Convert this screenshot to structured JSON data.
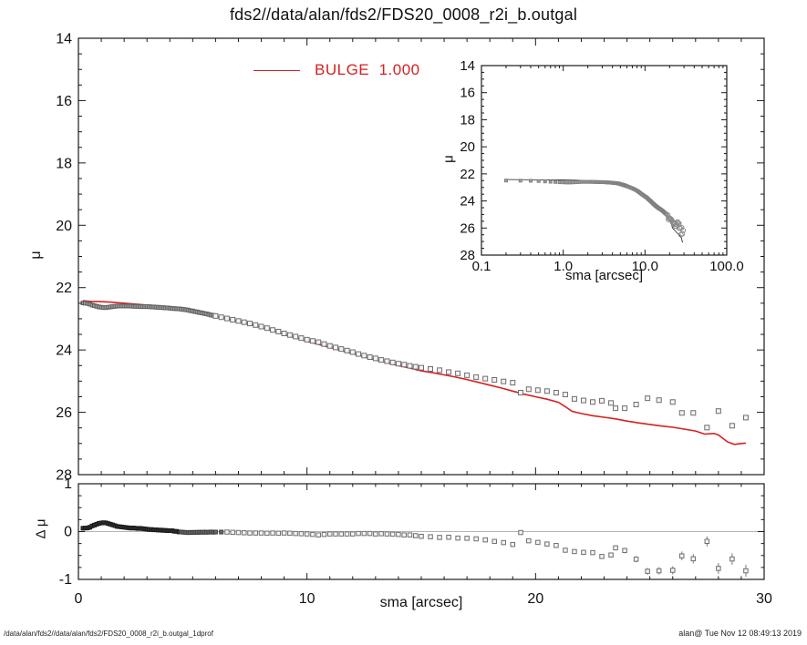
{
  "title": "fds2//data/alan/fds2/FDS20_0008_r2i_b.outgal",
  "legend": {
    "label": "BULGE  1.000",
    "color": "#d62020"
  },
  "footer": {
    "left": "/data/alan/fds2//data/alan/fds2/FDS20_0008_r2i_b.outgal_1dprof",
    "right": "alan@  Tue Nov 12 08:49:13 2019"
  },
  "colors": {
    "model_line": "#d62020",
    "inset_model_line": "#3a3a3a",
    "frame": "#1a1a1a",
    "zero_line": "#b4b4b4",
    "marker_stroke": "#6e6e6e",
    "marker_fill": "#f4f4f4",
    "dense_fill": "#9b9b9b",
    "dense_stroke": "#5f5f5f",
    "resid_dense_fill": "#2e2e2e",
    "resid_dense_stroke": "#1a1a1a"
  },
  "main_plot": {
    "ylabel": "μ",
    "xlim": [
      0,
      30
    ],
    "ylim": [
      28,
      14
    ],
    "xtick_labels": [
      "0",
      "10",
      "20",
      "30"
    ],
    "xtick_values": [
      0,
      10,
      20,
      30
    ],
    "ytick_labels": [
      "14",
      "16",
      "18",
      "20",
      "22",
      "24",
      "26",
      "28"
    ],
    "ytick_values": [
      14,
      16,
      18,
      20,
      22,
      24,
      26,
      28
    ],
    "x_minor_step": 1,
    "y_minor_step": 0.5
  },
  "inset_plot": {
    "xlabel": "sma [arcsec]",
    "ylabel": "μ",
    "xscale": "log",
    "xlim": [
      0.1,
      100
    ],
    "ylim": [
      28,
      14
    ],
    "xtick_labels": [
      "0.1",
      "1.0",
      "10.0",
      "100.0"
    ],
    "xtick_values": [
      0.1,
      1,
      10,
      100
    ],
    "ytick_labels": [
      "14",
      "16",
      "18",
      "20",
      "22",
      "24",
      "26",
      "28"
    ],
    "ytick_values": [
      14,
      16,
      18,
      20,
      22,
      24,
      26,
      28
    ],
    "y_minor_step": 0.5
  },
  "residual_plot": {
    "xlabel": "sma [arcsec]",
    "ylabel": "Δ μ",
    "xlim": [
      0,
      30
    ],
    "ylim": [
      -1,
      1
    ],
    "ytick_labels": [
      "1",
      "0",
      "-1"
    ],
    "ytick_values": [
      1,
      0,
      -1
    ],
    "x_minor_step": 1,
    "y_minor_step": 0.25,
    "derivation": "delta_mu = data_mu - bulge_model_mu (interpolated)"
  },
  "chart_data": [
    {
      "id": "main",
      "type": "scatter",
      "title": "fds2//data/alan/fds2/FDS20_0008_r2i_b.outgal",
      "xlabel": "sma [arcsec]",
      "ylabel": "μ",
      "xlim": [
        0,
        30
      ],
      "ylim": [
        28,
        14
      ],
      "series": [
        {
          "name": "surface-brightness-data",
          "marker": "square",
          "points": [
            [
              0.2,
              22.49
            ],
            [
              0.3,
              22.5
            ],
            [
              0.4,
              22.51
            ],
            [
              0.5,
              22.53
            ],
            [
              0.6,
              22.56
            ],
            [
              0.7,
              22.58
            ],
            [
              0.8,
              22.6
            ],
            [
              0.9,
              22.62
            ],
            [
              1.0,
              22.63
            ],
            [
              1.1,
              22.64
            ],
            [
              1.2,
              22.64
            ],
            [
              1.3,
              22.63
            ],
            [
              1.4,
              22.62
            ],
            [
              1.5,
              22.61
            ],
            [
              1.6,
              22.6
            ],
            [
              1.7,
              22.59
            ],
            [
              1.8,
              22.59
            ],
            [
              1.9,
              22.59
            ],
            [
              2.0,
              22.59
            ],
            [
              2.1,
              22.59
            ],
            [
              2.2,
              22.59
            ],
            [
              2.3,
              22.59
            ],
            [
              2.4,
              22.6
            ],
            [
              2.5,
              22.6
            ],
            [
              2.6,
              22.6
            ],
            [
              2.7,
              22.61
            ],
            [
              2.8,
              22.61
            ],
            [
              2.9,
              22.61
            ],
            [
              3.0,
              22.61
            ],
            [
              3.1,
              22.61
            ],
            [
              3.2,
              22.62
            ],
            [
              3.3,
              22.62
            ],
            [
              3.4,
              22.63
            ],
            [
              3.5,
              22.63
            ],
            [
              3.6,
              22.64
            ],
            [
              3.7,
              22.64
            ],
            [
              3.8,
              22.65
            ],
            [
              3.9,
              22.65
            ],
            [
              4.0,
              22.66
            ],
            [
              4.1,
              22.67
            ],
            [
              4.2,
              22.67
            ],
            [
              4.3,
              22.68
            ],
            [
              4.4,
              22.68
            ],
            [
              4.5,
              22.69
            ],
            [
              4.6,
              22.7
            ],
            [
              4.7,
              22.71
            ],
            [
              4.8,
              22.72
            ],
            [
              4.9,
              22.74
            ],
            [
              5.0,
              22.75
            ],
            [
              5.1,
              22.77
            ],
            [
              5.2,
              22.78
            ],
            [
              5.3,
              22.8
            ],
            [
              5.4,
              22.81
            ],
            [
              5.5,
              22.83
            ],
            [
              5.6,
              22.84
            ],
            [
              5.7,
              22.86
            ],
            [
              5.8,
              22.88
            ],
            [
              5.9,
              22.89
            ],
            [
              6.0,
              22.91
            ],
            [
              6.25,
              22.95
            ],
            [
              6.5,
              22.99
            ],
            [
              6.75,
              23.03
            ],
            [
              7.0,
              23.07
            ],
            [
              7.25,
              23.11
            ],
            [
              7.5,
              23.15
            ],
            [
              7.75,
              23.2
            ],
            [
              8.0,
              23.25
            ],
            [
              8.25,
              23.3
            ],
            [
              8.5,
              23.36
            ],
            [
              8.75,
              23.41
            ],
            [
              9.0,
              23.47
            ],
            [
              9.25,
              23.52
            ],
            [
              9.5,
              23.57
            ],
            [
              9.75,
              23.62
            ],
            [
              10.0,
              23.67
            ],
            [
              10.25,
              23.71
            ],
            [
              10.5,
              23.75
            ],
            [
              10.75,
              23.81
            ],
            [
              11.0,
              23.87
            ],
            [
              11.25,
              23.92
            ],
            [
              11.5,
              23.97
            ],
            [
              11.75,
              24.02
            ],
            [
              12.0,
              24.07
            ],
            [
              12.25,
              24.13
            ],
            [
              12.5,
              24.18
            ],
            [
              12.75,
              24.23
            ],
            [
              13.0,
              24.27
            ],
            [
              13.25,
              24.32
            ],
            [
              13.5,
              24.36
            ],
            [
              13.75,
              24.4
            ],
            [
              14.0,
              24.44
            ],
            [
              14.25,
              24.47
            ],
            [
              14.5,
              24.51
            ],
            [
              14.75,
              24.54
            ],
            [
              15.0,
              24.57
            ],
            [
              15.4,
              24.61
            ],
            [
              15.8,
              24.65
            ],
            [
              16.2,
              24.71
            ],
            [
              16.6,
              24.75
            ],
            [
              17.0,
              24.81
            ],
            [
              17.4,
              24.87
            ],
            [
              17.8,
              24.92
            ],
            [
              18.2,
              24.96
            ],
            [
              18.6,
              25.01
            ],
            [
              19.0,
              25.05
            ],
            [
              19.35,
              25.37
            ],
            [
              19.7,
              25.26
            ],
            [
              20.1,
              25.29
            ],
            [
              20.5,
              25.32
            ],
            [
              20.9,
              25.37
            ],
            [
              21.3,
              25.43
            ],
            [
              21.7,
              25.57
            ],
            [
              22.1,
              25.62
            ],
            [
              22.5,
              25.67
            ],
            [
              22.9,
              25.63
            ],
            [
              23.3,
              25.7
            ],
            [
              23.5,
              25.87
            ],
            [
              23.9,
              25.87
            ],
            [
              24.4,
              25.75
            ],
            [
              24.9,
              25.55
            ],
            [
              25.4,
              25.61
            ],
            [
              26.0,
              25.67
            ],
            [
              26.4,
              26.02
            ],
            [
              26.9,
              26.02
            ],
            [
              27.5,
              26.49
            ],
            [
              28.0,
              25.96
            ],
            [
              28.6,
              26.43
            ],
            [
              29.2,
              26.17
            ]
          ]
        },
        {
          "name": "BULGE 1.000",
          "type": "line",
          "color": "#d62020",
          "points": [
            [
              0.2,
              22.42
            ],
            [
              0.5,
              22.44
            ],
            [
              1.0,
              22.45
            ],
            [
              1.5,
              22.47
            ],
            [
              2.0,
              22.5
            ],
            [
              2.5,
              22.53
            ],
            [
              3.0,
              22.56
            ],
            [
              3.5,
              22.6
            ],
            [
              4.0,
              22.64
            ],
            [
              4.5,
              22.7
            ],
            [
              5.0,
              22.77
            ],
            [
              5.5,
              22.84
            ],
            [
              6.0,
              22.92
            ],
            [
              6.5,
              23.0
            ],
            [
              7.0,
              23.09
            ],
            [
              7.5,
              23.18
            ],
            [
              8.0,
              23.28
            ],
            [
              8.5,
              23.39
            ],
            [
              9.0,
              23.5
            ],
            [
              9.5,
              23.61
            ],
            [
              10.0,
              23.72
            ],
            [
              10.5,
              23.82
            ],
            [
              11.0,
              23.92
            ],
            [
              11.5,
              24.02
            ],
            [
              12.0,
              24.12
            ],
            [
              12.5,
              24.22
            ],
            [
              13.0,
              24.32
            ],
            [
              13.5,
              24.41
            ],
            [
              14.0,
              24.5
            ],
            [
              14.5,
              24.58
            ],
            [
              15.0,
              24.67
            ],
            [
              15.5,
              24.73
            ],
            [
              16.0,
              24.8
            ],
            [
              16.5,
              24.87
            ],
            [
              17.0,
              24.95
            ],
            [
              17.5,
              25.04
            ],
            [
              18.0,
              25.13
            ],
            [
              18.5,
              25.22
            ],
            [
              19.0,
              25.32
            ],
            [
              19.5,
              25.42
            ],
            [
              20.0,
              25.5
            ],
            [
              20.5,
              25.58
            ],
            [
              21.0,
              25.68
            ],
            [
              21.3,
              25.82
            ],
            [
              21.6,
              25.97
            ],
            [
              22.0,
              26.04
            ],
            [
              22.5,
              26.11
            ],
            [
              23.0,
              26.16
            ],
            [
              23.5,
              26.21
            ],
            [
              24.0,
              26.28
            ],
            [
              24.5,
              26.34
            ],
            [
              25.0,
              26.39
            ],
            [
              25.5,
              26.44
            ],
            [
              26.0,
              26.48
            ],
            [
              26.5,
              26.54
            ],
            [
              27.0,
              26.6
            ],
            [
              27.4,
              26.7
            ],
            [
              27.8,
              26.68
            ],
            [
              28.0,
              26.73
            ],
            [
              28.4,
              26.95
            ],
            [
              28.7,
              27.03
            ],
            [
              29.0,
              27.0
            ],
            [
              29.2,
              26.99
            ]
          ]
        }
      ]
    },
    {
      "id": "inset",
      "type": "scatter",
      "xscale": "log",
      "xlabel": "sma [arcsec]",
      "ylabel": "μ",
      "xlim": [
        0.1,
        100
      ],
      "ylim": [
        28,
        14
      ],
      "series_ref": "main"
    },
    {
      "id": "residual",
      "type": "scatter",
      "xlabel": "sma [arcsec]",
      "ylabel": "Δ μ",
      "xlim": [
        0,
        30
      ],
      "ylim": [
        -1,
        1
      ],
      "derived": "data_minus_bulge"
    }
  ]
}
